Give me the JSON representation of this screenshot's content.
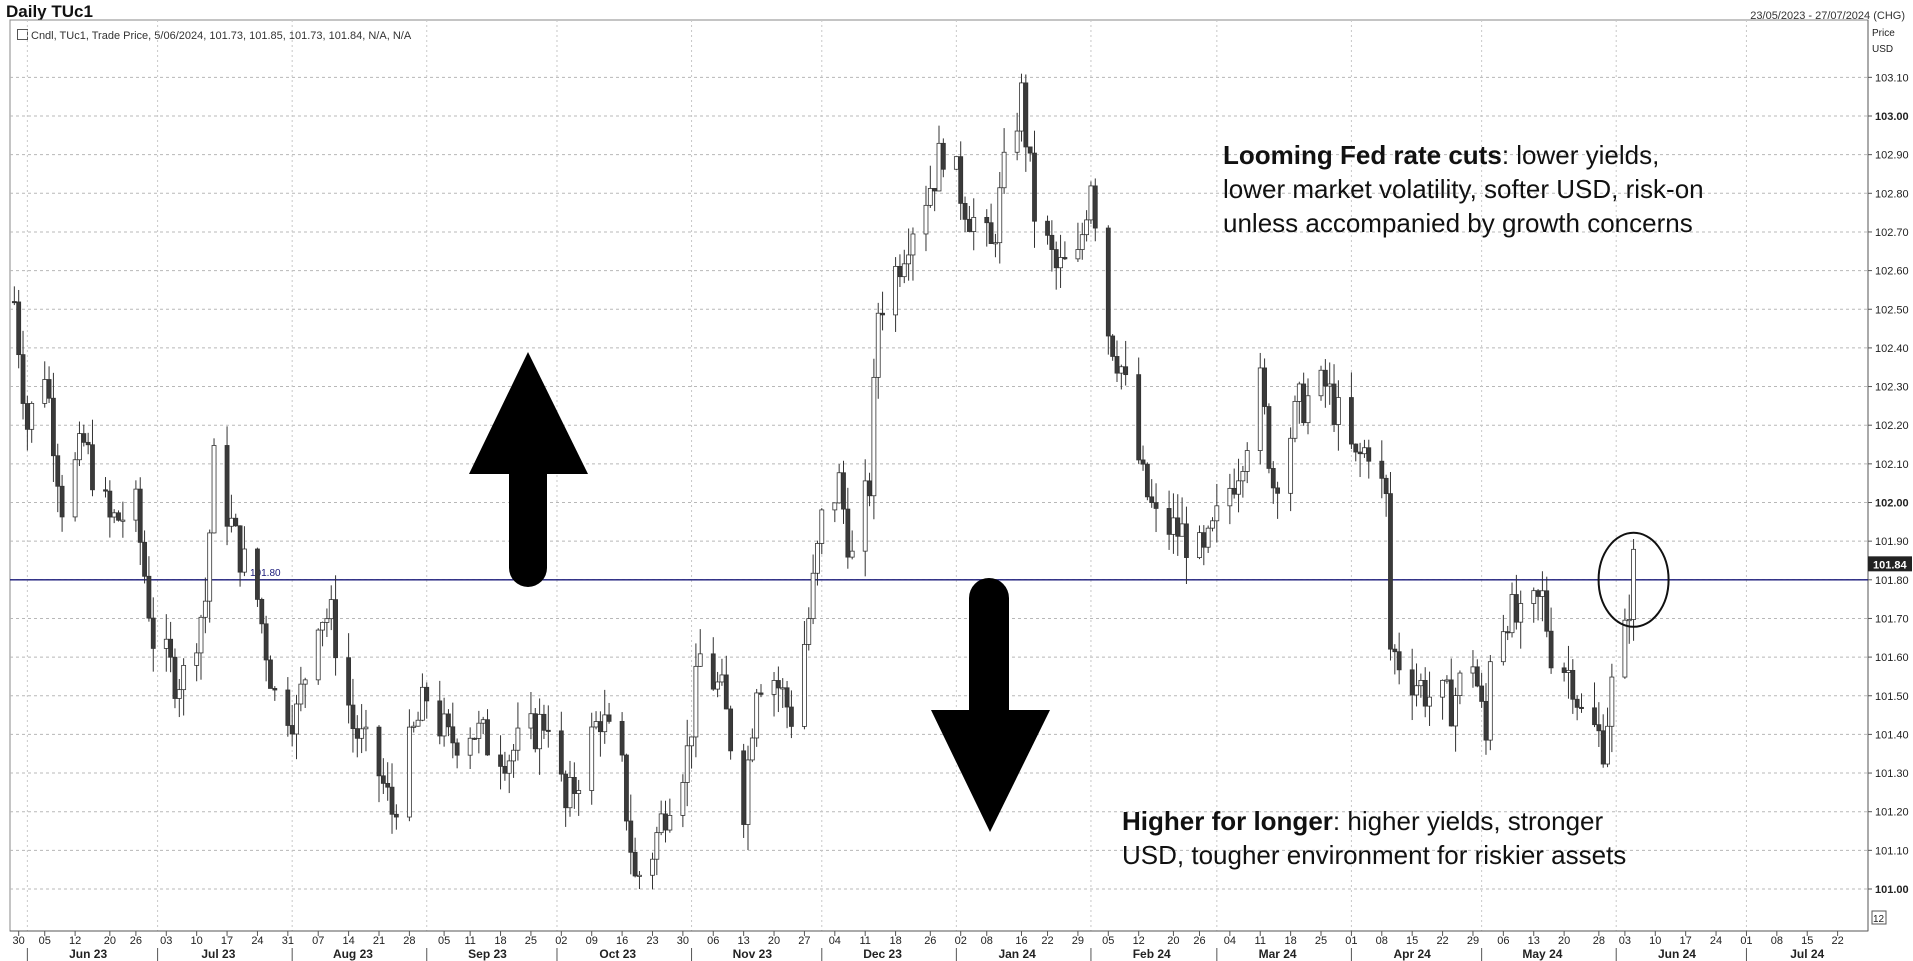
{
  "header": {
    "title": "Daily TUc1",
    "date_range": "23/05/2023 - 27/07/2024 (CHG)",
    "legend": "Cndl, TUc1, Trade Price, 5/06/2024, 101.73, 101.85, 101.73, 101.84, N/A, N/A"
  },
  "axis": {
    "price_label": "Price",
    "unit_label": "USD",
    "page_marker": "12"
  },
  "annotations": {
    "upper_bold": "Looming Fed rate cuts",
    "upper_l1": ": lower yields,",
    "upper_l2": "lower market volatility, softer USD, risk-on",
    "upper_l3": "unless accompanied by growth concerns",
    "lower_bold": "Higher for longer",
    "lower_l1": ": higher yields, stronger",
    "lower_l2": "USD, tougher environment for riskier assets"
  },
  "colors": {
    "ref_line": "#1a1a7a",
    "candles": "#444444",
    "grid": "#b8b8b8"
  },
  "chart_data": {
    "type": "candlestick",
    "title": "Daily TUc1",
    "ylabel": "Price USD",
    "ylim": [
      100.93,
      103.19
    ],
    "xlim": [
      "2023-05-28",
      "2024-07-29"
    ],
    "grid": true,
    "y_ticks": [
      "101.00",
      "101.10",
      "101.20",
      "101.30",
      "101.40",
      "101.50",
      "101.60",
      "101.70",
      "101.80",
      "101.90",
      "102.00",
      "102.10",
      "102.20",
      "102.30",
      "102.40",
      "102.50",
      "102.60",
      "102.70",
      "102.80",
      "102.90",
      "103.00",
      "103.10"
    ],
    "bold_y_ticks": [
      "101.00",
      "102.00",
      "103.00"
    ],
    "reference_line": {
      "value": 101.8,
      "label": "101.80"
    },
    "last_price": {
      "value": 101.84,
      "label": "101.84"
    },
    "highlight_circle_date": "2024-06-05",
    "day_ticks": [
      {
        "date": "2023-05-30",
        "label": "30"
      },
      {
        "date": "2023-06-05",
        "label": "05"
      },
      {
        "date": "2023-06-12",
        "label": "12"
      },
      {
        "date": "2023-06-20",
        "label": "20"
      },
      {
        "date": "2023-06-26",
        "label": "26"
      },
      {
        "date": "2023-07-03",
        "label": "03"
      },
      {
        "date": "2023-07-10",
        "label": "10"
      },
      {
        "date": "2023-07-17",
        "label": "17"
      },
      {
        "date": "2023-07-24",
        "label": "24"
      },
      {
        "date": "2023-07-31",
        "label": "31"
      },
      {
        "date": "2023-08-07",
        "label": "07"
      },
      {
        "date": "2023-08-14",
        "label": "14"
      },
      {
        "date": "2023-08-21",
        "label": "21"
      },
      {
        "date": "2023-08-28",
        "label": "28"
      },
      {
        "date": "2023-09-05",
        "label": "05"
      },
      {
        "date": "2023-09-11",
        "label": "11"
      },
      {
        "date": "2023-09-18",
        "label": "18"
      },
      {
        "date": "2023-09-25",
        "label": "25"
      },
      {
        "date": "2023-10-02",
        "label": "02"
      },
      {
        "date": "2023-10-09",
        "label": "09"
      },
      {
        "date": "2023-10-16",
        "label": "16"
      },
      {
        "date": "2023-10-23",
        "label": "23"
      },
      {
        "date": "2023-10-30",
        "label": "30"
      },
      {
        "date": "2023-11-06",
        "label": "06"
      },
      {
        "date": "2023-11-13",
        "label": "13"
      },
      {
        "date": "2023-11-20",
        "label": "20"
      },
      {
        "date": "2023-11-27",
        "label": "27"
      },
      {
        "date": "2023-12-04",
        "label": "04"
      },
      {
        "date": "2023-12-11",
        "label": "11"
      },
      {
        "date": "2023-12-18",
        "label": "18"
      },
      {
        "date": "2023-12-26",
        "label": "26"
      },
      {
        "date": "2024-01-02",
        "label": "02"
      },
      {
        "date": "2024-01-08",
        "label": "08"
      },
      {
        "date": "2024-01-16",
        "label": "16"
      },
      {
        "date": "2024-01-22",
        "label": "22"
      },
      {
        "date": "2024-01-29",
        "label": "29"
      },
      {
        "date": "2024-02-05",
        "label": "05"
      },
      {
        "date": "2024-02-12",
        "label": "12"
      },
      {
        "date": "2024-02-20",
        "label": "20"
      },
      {
        "date": "2024-02-26",
        "label": "26"
      },
      {
        "date": "2024-03-04",
        "label": "04"
      },
      {
        "date": "2024-03-11",
        "label": "11"
      },
      {
        "date": "2024-03-18",
        "label": "18"
      },
      {
        "date": "2024-03-25",
        "label": "25"
      },
      {
        "date": "2024-04-01",
        "label": "01"
      },
      {
        "date": "2024-04-08",
        "label": "08"
      },
      {
        "date": "2024-04-15",
        "label": "15"
      },
      {
        "date": "2024-04-22",
        "label": "22"
      },
      {
        "date": "2024-04-29",
        "label": "29"
      },
      {
        "date": "2024-05-06",
        "label": "06"
      },
      {
        "date": "2024-05-13",
        "label": "13"
      },
      {
        "date": "2024-05-20",
        "label": "20"
      },
      {
        "date": "2024-05-28",
        "label": "28"
      },
      {
        "date": "2024-06-03",
        "label": "03"
      },
      {
        "date": "2024-06-10",
        "label": "10"
      },
      {
        "date": "2024-06-17",
        "label": "17"
      },
      {
        "date": "2024-06-24",
        "label": "24"
      },
      {
        "date": "2024-07-01",
        "label": "01"
      },
      {
        "date": "2024-07-08",
        "label": "08"
      },
      {
        "date": "2024-07-15",
        "label": "15"
      },
      {
        "date": "2024-07-22",
        "label": "22"
      }
    ],
    "month_ticks": [
      {
        "date": "2023-06-15",
        "label": "Jun 23"
      },
      {
        "date": "2023-07-15",
        "label": "Jul 23"
      },
      {
        "date": "2023-08-15",
        "label": "Aug 23"
      },
      {
        "date": "2023-09-15",
        "label": "Sep 23"
      },
      {
        "date": "2023-10-15",
        "label": "Oct 23"
      },
      {
        "date": "2023-11-15",
        "label": "Nov 23"
      },
      {
        "date": "2023-12-15",
        "label": "Dec 23"
      },
      {
        "date": "2024-01-15",
        "label": "Jan 24"
      },
      {
        "date": "2024-02-15",
        "label": "Feb 24"
      },
      {
        "date": "2024-03-15",
        "label": "Mar 24"
      },
      {
        "date": "2024-04-15",
        "label": "Apr 24"
      },
      {
        "date": "2024-05-15",
        "label": "May 24"
      },
      {
        "date": "2024-06-15",
        "label": "Jun 24"
      },
      {
        "date": "2024-07-15",
        "label": "Jul 24"
      }
    ],
    "close_path": [
      [
        "2023-05-29",
        102.52
      ],
      [
        "2023-06-01",
        102.2
      ],
      [
        "2023-06-05",
        102.35
      ],
      [
        "2023-06-09",
        102.0
      ],
      [
        "2023-06-14",
        102.15
      ],
      [
        "2023-06-20",
        101.95
      ],
      [
        "2023-06-26",
        101.98
      ],
      [
        "2023-06-30",
        101.65
      ],
      [
        "2023-07-05",
        101.55
      ],
      [
        "2023-07-07",
        101.55
      ],
      [
        "2023-07-12",
        101.75
      ],
      [
        "2023-07-14",
        102.1
      ],
      [
        "2023-07-19",
        101.9
      ],
      [
        "2023-07-24",
        101.75
      ],
      [
        "2023-07-28",
        101.5
      ],
      [
        "2023-08-02",
        101.45
      ],
      [
        "2023-08-07",
        101.72
      ],
      [
        "2023-08-10",
        101.7
      ],
      [
        "2023-08-15",
        101.42
      ],
      [
        "2023-08-21",
        101.3
      ],
      [
        "2023-08-24",
        101.2
      ],
      [
        "2023-08-29",
        101.4
      ],
      [
        "2023-09-01",
        101.5
      ],
      [
        "2023-09-06",
        101.38
      ],
      [
        "2023-09-11",
        101.42
      ],
      [
        "2023-09-15",
        101.38
      ],
      [
        "2023-09-20",
        101.35
      ],
      [
        "2023-09-25",
        101.4
      ],
      [
        "2023-09-29",
        101.45
      ],
      [
        "2023-10-03",
        101.2
      ],
      [
        "2023-10-06",
        101.3
      ],
      [
        "2023-10-11",
        101.45
      ],
      [
        "2023-10-16",
        101.3
      ],
      [
        "2023-10-19",
        101.02
      ],
      [
        "2023-10-23",
        101.1
      ],
      [
        "2023-10-27",
        101.25
      ],
      [
        "2023-10-31",
        101.35
      ],
      [
        "2023-11-03",
        101.6
      ],
      [
        "2023-11-08",
        101.5
      ],
      [
        "2023-11-13",
        101.22
      ],
      [
        "2023-11-16",
        101.55
      ],
      [
        "2023-11-20",
        101.55
      ],
      [
        "2023-11-24",
        101.45
      ],
      [
        "2023-11-28",
        101.7
      ],
      [
        "2023-12-01",
        101.95
      ],
      [
        "2023-12-05",
        102.05
      ],
      [
        "2023-12-08",
        101.85
      ],
      [
        "2023-12-12",
        102.05
      ],
      [
        "2023-12-14",
        102.5
      ],
      [
        "2023-12-18",
        102.6
      ],
      [
        "2023-12-21",
        102.7
      ],
      [
        "2023-12-27",
        102.85
      ],
      [
        "2023-12-29",
        102.92
      ],
      [
        "2024-01-04",
        102.75
      ],
      [
        "2024-01-09",
        102.65
      ],
      [
        "2024-01-12",
        102.85
      ],
      [
        "2024-01-16",
        103.05
      ],
      [
        "2024-01-19",
        102.75
      ],
      [
        "2024-01-24",
        102.6
      ],
      [
        "2024-01-29",
        102.62
      ],
      [
        "2024-02-01",
        102.85
      ],
      [
        "2024-02-05",
        102.45
      ],
      [
        "2024-02-08",
        102.35
      ],
      [
        "2024-02-13",
        102.05
      ],
      [
        "2024-02-16",
        101.95
      ],
      [
        "2024-02-22",
        101.92
      ],
      [
        "2024-02-27",
        101.85
      ],
      [
        "2024-03-01",
        101.95
      ],
      [
        "2024-03-06",
        102.1
      ],
      [
        "2024-03-11",
        102.3
      ],
      [
        "2024-03-14",
        102.05
      ],
      [
        "2024-03-20",
        102.25
      ],
      [
        "2024-03-26",
        102.3
      ],
      [
        "2024-03-28",
        102.25
      ],
      [
        "2024-04-02",
        102.1
      ],
      [
        "2024-04-05",
        102.15
      ],
      [
        "2024-04-09",
        102.0
      ],
      [
        "2024-04-10",
        101.62
      ],
      [
        "2024-04-15",
        101.55
      ],
      [
        "2024-04-19",
        101.5
      ],
      [
        "2024-04-24",
        101.48
      ],
      [
        "2024-04-29",
        101.6
      ],
      [
        "2024-05-02",
        101.38
      ],
      [
        "2024-05-03",
        101.62
      ],
      [
        "2024-05-07",
        101.72
      ],
      [
        "2024-05-10",
        101.68
      ],
      [
        "2024-05-15",
        101.75
      ],
      [
        "2024-05-17",
        101.62
      ],
      [
        "2024-05-22",
        101.55
      ],
      [
        "2024-05-24",
        101.45
      ],
      [
        "2024-05-29",
        101.38
      ],
      [
        "2024-05-31",
        101.52
      ],
      [
        "2024-06-03",
        101.65
      ],
      [
        "2024-06-05",
        101.84
      ]
    ]
  }
}
